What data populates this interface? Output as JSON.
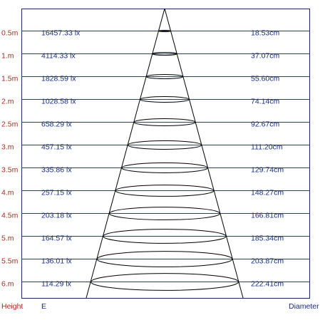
{
  "rows": [
    {
      "height": "0.5m",
      "illuminance": "16457.33 lx",
      "diameter": "18.53cm"
    },
    {
      "height": "1.m",
      "illuminance": "4114.33 lx",
      "diameter": "37.07cm"
    },
    {
      "height": "1.5m",
      "illuminance": "1828.59 lx",
      "diameter": "55.60cm"
    },
    {
      "height": "2.m",
      "illuminance": "1028.58 lx",
      "diameter": "74.14cm"
    },
    {
      "height": "2.5m",
      "illuminance": "658.29 lx",
      "diameter": "92.67cm"
    },
    {
      "height": "3.m",
      "illuminance": "457.15 lx",
      "diameter": "111.20cm"
    },
    {
      "height": "3.5m",
      "illuminance": "335.86 lx",
      "diameter": "129.74cm"
    },
    {
      "height": "4.m",
      "illuminance": "257.15 lx",
      "diameter": "148.27cm"
    },
    {
      "height": "4.5m",
      "illuminance": "203.18 lx",
      "diameter": "166.81cm"
    },
    {
      "height": "5.m",
      "illuminance": "164.57 lx",
      "diameter": "185.34cm"
    },
    {
      "height": "5.5m",
      "illuminance": "136.01 lx",
      "diameter": "203.87cm"
    },
    {
      "height": "6.m",
      "illuminance": "114.29 lx",
      "diameter": "222.41cm"
    }
  ],
  "footer": {
    "height": "Height",
    "illuminance": "E",
    "diameter": "Diameter"
  }
}
